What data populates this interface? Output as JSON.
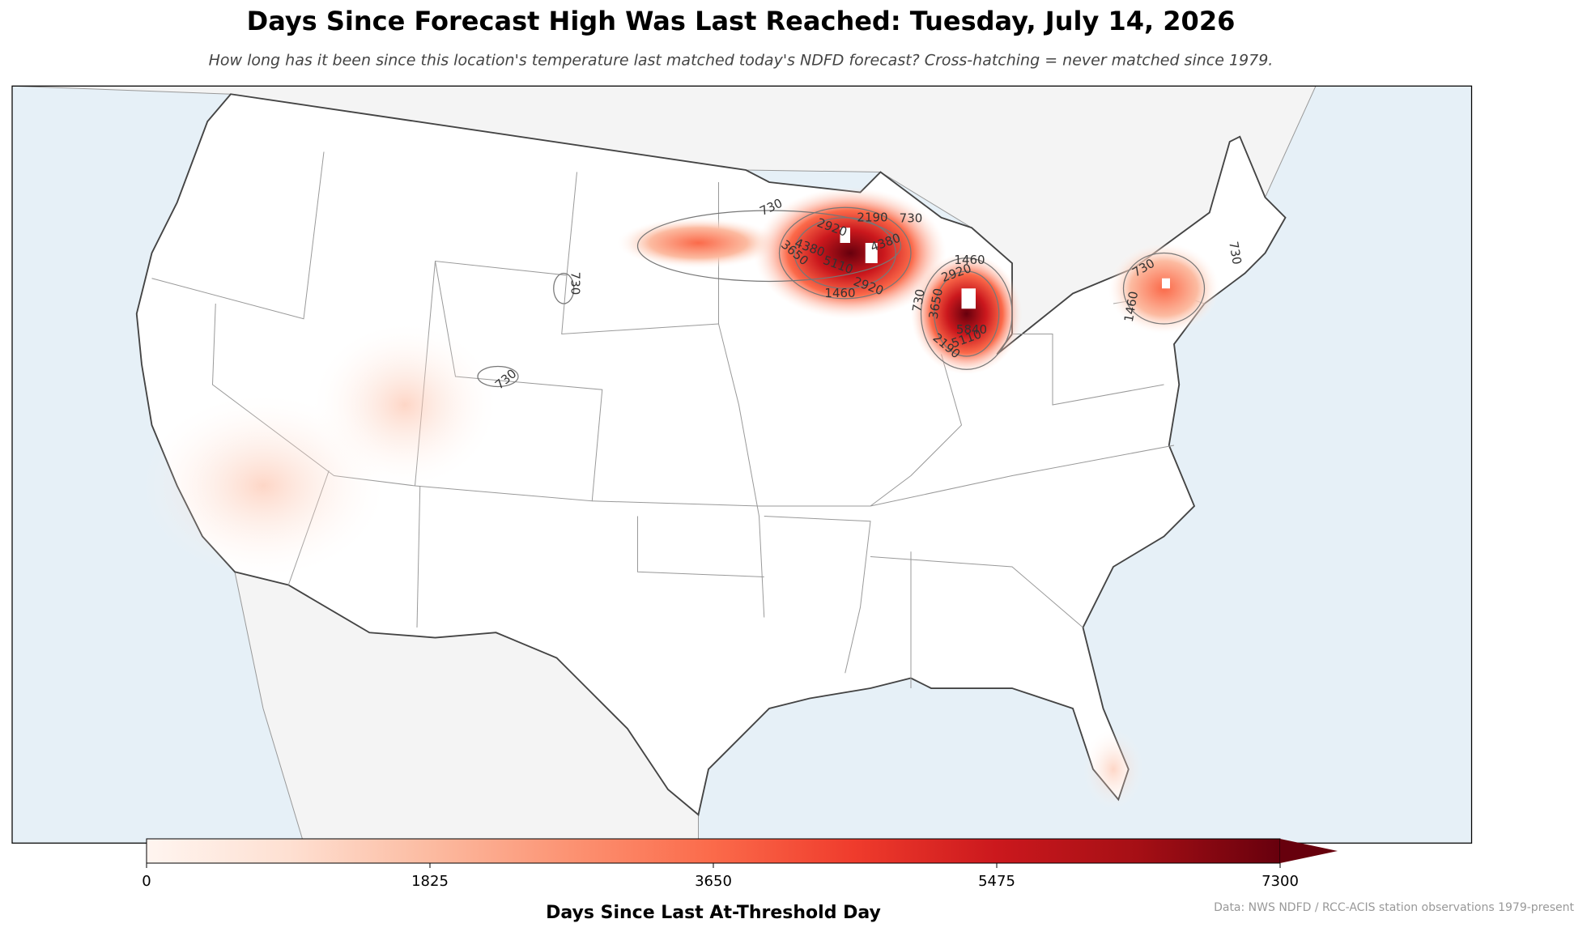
{
  "chart_data": {
    "type": "map",
    "title": "Days Since Forecast High Was Last Reached: Tuesday, July 14, 2026",
    "subtitle": "How long has it been since this location's temperature last matched today's NDFD forecast? Cross-hatching = never matched since 1979.",
    "contour_labels": [
      730,
      730,
      730,
      730,
      730,
      730,
      730,
      1460,
      1460,
      1460,
      2190,
      2190,
      2920,
      2920,
      2920,
      3650,
      3650,
      4380,
      4380,
      5110,
      5110,
      5840
    ],
    "colorbar": {
      "label": "Days Since Last At-Threshold Day",
      "lim": [
        0,
        7300
      ],
      "ticks": [
        0,
        1825,
        3650,
        5475,
        7300
      ]
    },
    "source": "Data: NWS NDFD / RCC-ACIS station observations 1979-present"
  }
}
